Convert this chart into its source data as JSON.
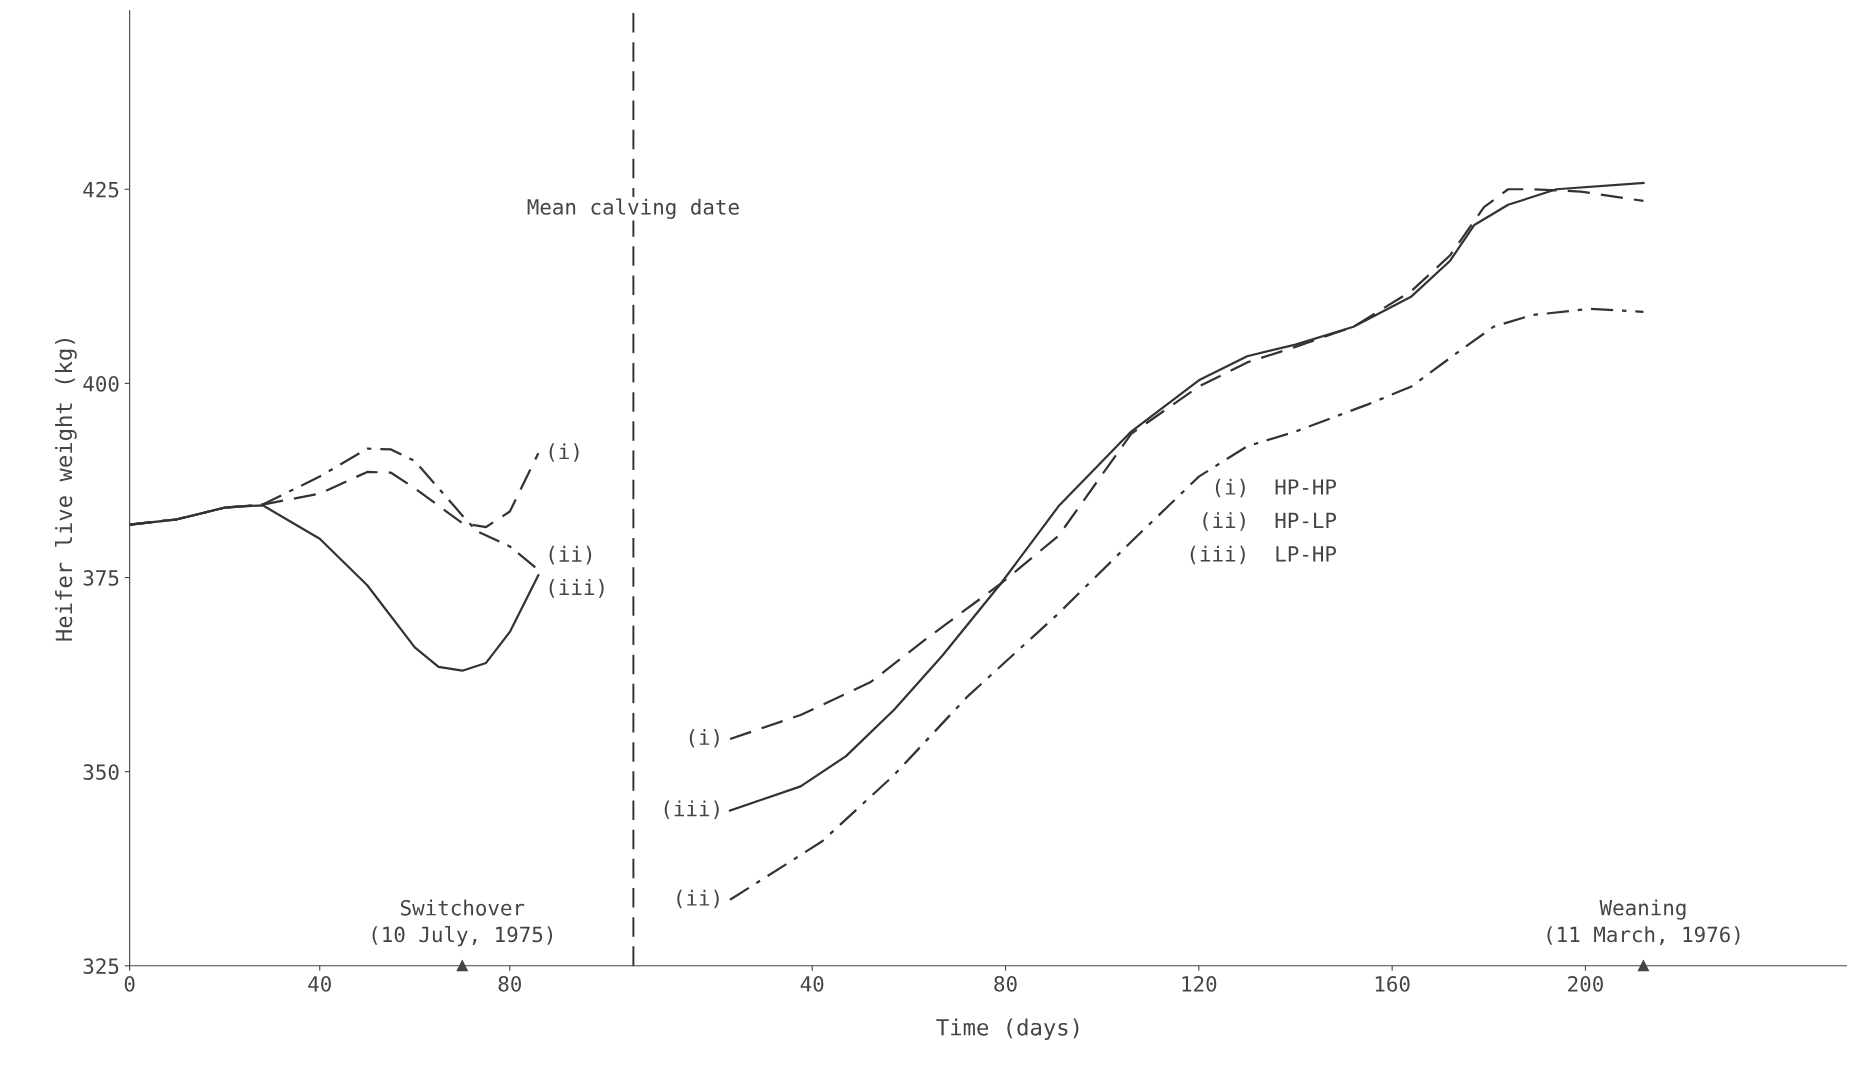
{
  "chart_data": [
    {
      "type": "line",
      "ylabel": "Heifer live weight (kg)",
      "xlim": [
        0,
        106
      ],
      "xticks": [
        0,
        40,
        80
      ],
      "ylim": [
        325,
        448
      ],
      "yticks": [
        325,
        350,
        375,
        400,
        425
      ],
      "grid": false,
      "legend": false,
      "marker": "none",
      "series": [
        {
          "name": "(i)",
          "color": "#333333",
          "line_style": "dashed",
          "x": [
            0,
            10,
            20,
            28,
            40,
            50,
            55,
            60,
            70,
            75,
            80,
            86
          ],
          "values": [
            381.8,
            382.5,
            384,
            384.4,
            385.8,
            388.6,
            388.5,
            386.5,
            382,
            381.5,
            383.5,
            391
          ]
        },
        {
          "name": "(ii)",
          "color": "#333333",
          "line_style": "dashdot",
          "x": [
            0,
            10,
            20,
            28,
            40,
            50,
            55,
            60,
            70,
            73,
            80,
            86
          ],
          "values": [
            381.8,
            382.5,
            384,
            384.4,
            388,
            391.6,
            391.5,
            390,
            383,
            381,
            379,
            376
          ]
        },
        {
          "name": "(iii)",
          "color": "#333333",
          "line_style": "solid",
          "x": [
            0,
            10,
            20,
            28,
            40,
            50,
            60,
            65,
            70,
            75,
            80,
            86
          ],
          "values": [
            381.8,
            382.5,
            384,
            384.3,
            380,
            374,
            366,
            363.5,
            363,
            364,
            368,
            375.3
          ]
        }
      ],
      "annotations": [
        {
          "text": "Switchover\n(10 July, 1975)",
          "x": 70,
          "y": 325
        }
      ]
    },
    {
      "type": "line",
      "xlabel": "Time (days)",
      "xlim": [
        3,
        254
      ],
      "xticks": [
        40,
        80,
        120,
        160,
        200
      ],
      "ylim": [
        325,
        448
      ],
      "tick_labels": "x",
      "grid": false,
      "legend": false,
      "marker": "none",
      "ref_lines": [
        {
          "axis": "x",
          "value": 3,
          "label": "Mean calving date",
          "line_style": "dashed",
          "color": "#333333"
        }
      ],
      "series": [
        {
          "name": "(i)",
          "color": "#333333",
          "line_style": "dashed",
          "x": [
            23,
            37.6,
            52,
            64,
            79,
            91,
            106,
            120,
            130,
            140,
            152,
            164,
            172,
            179,
            184,
            189,
            199,
            212
          ],
          "values": [
            354.2,
            357.3,
            361.5,
            367.3,
            374.2,
            380.4,
            393.5,
            399.6,
            402.7,
            404.7,
            407.3,
            411.9,
            416.5,
            422.7,
            425,
            425,
            424.7,
            423.5
          ]
        },
        {
          "name": "(ii)",
          "color": "#333333",
          "line_style": "dashdot",
          "x": [
            23,
            42,
            57,
            72,
            91,
            106,
            120,
            130,
            140,
            155,
            164,
            174,
            181,
            189,
            201,
            212
          ],
          "values": [
            333.5,
            341,
            349.6,
            359.6,
            370.4,
            379.6,
            388,
            391.9,
            393.8,
            397.3,
            399.6,
            404.2,
            407.3,
            408.8,
            409.6,
            409.2
          ]
        },
        {
          "name": "(iii)",
          "color": "#333333",
          "line_style": "solid",
          "x": [
            23,
            37.6,
            47,
            57,
            67,
            79,
            91,
            106,
            120,
            130,
            140,
            152,
            164,
            172,
            177,
            184,
            194,
            212
          ],
          "values": [
            345,
            348.1,
            352,
            358,
            365,
            374.2,
            384.2,
            393.8,
            400.4,
            403.5,
            405,
            407.3,
            411.2,
            415.8,
            420.4,
            423,
            425,
            425.8
          ]
        }
      ],
      "annotations": [
        "(i)  HP-HP",
        "(ii)  HP-LP",
        "(iii)  LP-HP",
        {
          "text": "Weaning\n(11 March, 1976)",
          "x": 212,
          "y": 325
        }
      ]
    }
  ]
}
